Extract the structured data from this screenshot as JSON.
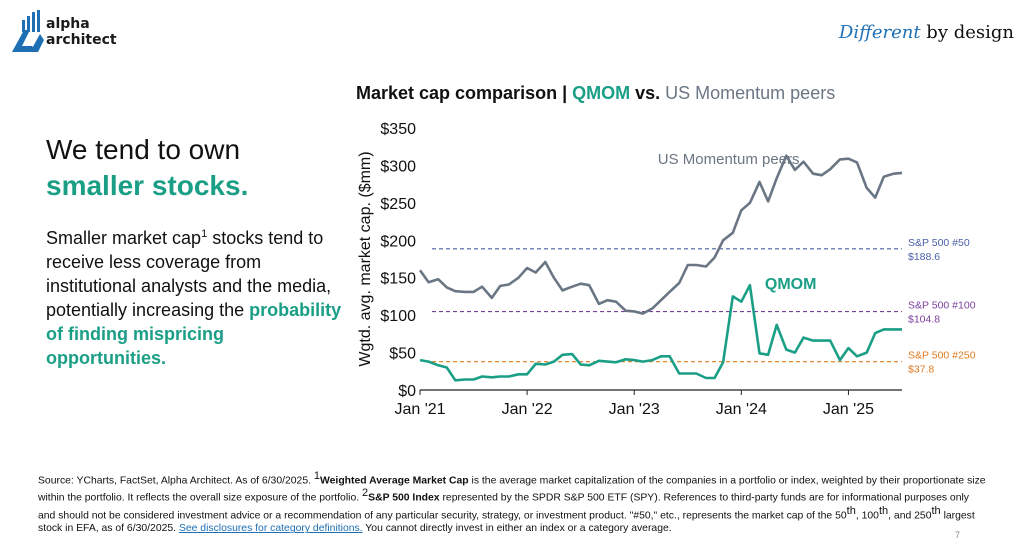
{
  "brand": {
    "name_line1": "alpha",
    "name_line2": "architect",
    "logo_color": "#1f6fb5"
  },
  "tagline": {
    "emphasis": "Different",
    "rest": " by design"
  },
  "headline": {
    "line1": "We tend to own",
    "line2": "smaller stocks."
  },
  "body": {
    "part1": "Smaller market cap",
    "sup": "1",
    "part2": " stocks tend to receive less coverage from institutional analysts and the media, potentially increasing the ",
    "accent": "probability of finding mispricing opportunities."
  },
  "chart_title": {
    "prefix": "Market cap comparison | ",
    "qmom": "QMOM",
    "vs": " vs. ",
    "peers": "US Momentum peers"
  },
  "chart_data": {
    "type": "line",
    "ylabel": "Wgtd. avg. market cap. ($mm)",
    "xlabel": "",
    "ylim": [
      0,
      350
    ],
    "xlim": [
      2021.0,
      2025.5
    ],
    "y_ticks": [
      {
        "value": 0,
        "label": "$0"
      },
      {
        "value": 50,
        "label": "$50"
      },
      {
        "value": 100,
        "label": "$100"
      },
      {
        "value": 150,
        "label": "$150"
      },
      {
        "value": 200,
        "label": "$200"
      },
      {
        "value": 250,
        "label": "$250"
      },
      {
        "value": 300,
        "label": "$300"
      },
      {
        "value": 350,
        "label": "$350"
      }
    ],
    "x_ticks": [
      {
        "value": 2021,
        "label": "Jan '21"
      },
      {
        "value": 2022,
        "label": "Jan '22"
      },
      {
        "value": 2023,
        "label": "Jan '23"
      },
      {
        "value": 2024,
        "label": "Jan '24"
      },
      {
        "value": 2025,
        "label": "Jan '25"
      }
    ],
    "series": [
      {
        "name": "US Momentum peers",
        "color": "#6b7685",
        "x": [
          2021.0,
          2021.08,
          2021.17,
          2021.25,
          2021.33,
          2021.42,
          2021.5,
          2021.58,
          2021.67,
          2021.75,
          2021.83,
          2021.92,
          2022.0,
          2022.08,
          2022.17,
          2022.25,
          2022.33,
          2022.42,
          2022.5,
          2022.58,
          2022.67,
          2022.75,
          2022.83,
          2022.92,
          2023.0,
          2023.08,
          2023.17,
          2023.25,
          2023.33,
          2023.42,
          2023.5,
          2023.58,
          2023.67,
          2023.75,
          2023.83,
          2023.92,
          2024.0,
          2024.08,
          2024.17,
          2024.25,
          2024.33,
          2024.42,
          2024.5,
          2024.58,
          2024.67,
          2024.75,
          2024.83,
          2024.92,
          2025.0,
          2025.08,
          2025.17,
          2025.25,
          2025.33,
          2025.42,
          2025.5
        ],
        "values": [
          160,
          144,
          148,
          137,
          132,
          131,
          131,
          138,
          123,
          139,
          141,
          150,
          163,
          157,
          171,
          150,
          133,
          138,
          142,
          140,
          115,
          120,
          118,
          106,
          105,
          102,
          109,
          120,
          131,
          143,
          167,
          167,
          165,
          177,
          200,
          210,
          240,
          250,
          278,
          252,
          283,
          313,
          294,
          305,
          289,
          287,
          295,
          308,
          309,
          304,
          270,
          257,
          285,
          289,
          290
        ]
      },
      {
        "name": "QMOM",
        "color": "#1a9f86",
        "x": [
          2021.0,
          2021.08,
          2021.17,
          2021.25,
          2021.33,
          2021.42,
          2021.5,
          2021.58,
          2021.67,
          2021.75,
          2021.83,
          2021.92,
          2022.0,
          2022.08,
          2022.17,
          2022.25,
          2022.33,
          2022.42,
          2022.5,
          2022.58,
          2022.67,
          2022.75,
          2022.83,
          2022.92,
          2023.0,
          2023.08,
          2023.17,
          2023.25,
          2023.33,
          2023.42,
          2023.5,
          2023.58,
          2023.67,
          2023.75,
          2023.83,
          2023.92,
          2024.0,
          2024.08,
          2024.17,
          2024.25,
          2024.33,
          2024.42,
          2024.5,
          2024.58,
          2024.67,
          2024.75,
          2024.83,
          2024.92,
          2025.0,
          2025.08,
          2025.17,
          2025.25,
          2025.33,
          2025.42,
          2025.5
        ],
        "values": [
          40,
          38,
          33,
          30,
          13,
          14,
          14,
          18,
          17,
          18,
          18,
          21,
          21,
          35,
          34,
          38,
          47,
          48,
          34,
          33,
          39,
          38,
          37,
          41,
          40,
          38,
          40,
          45,
          45,
          22,
          22,
          22,
          16,
          16,
          37,
          125,
          118,
          140,
          49,
          47,
          87,
          54,
          50,
          70,
          66,
          66,
          66,
          40,
          56,
          45,
          50,
          76,
          81,
          81,
          81
        ]
      }
    ],
    "series_labels": [
      {
        "text": "US Momentum peers",
        "x": 2023.22,
        "y": 302
      },
      {
        "text": "QMOM",
        "x": 2024.22,
        "y": 135
      }
    ],
    "reference_lines": [
      {
        "name": "S&P 500 #50",
        "value": 188.6,
        "value_label": "$188.6",
        "color": "#4a5fa8"
      },
      {
        "name": "S&P 500 #100",
        "value": 104.8,
        "value_label": "$104.8",
        "color": "#7b3f9e"
      },
      {
        "name": "S&P 500 #250",
        "value": 37.8,
        "value_label": "$37.8",
        "color": "#e07b22"
      }
    ],
    "grid": false
  },
  "footnote": {
    "p1": "Source: YCharts, FactSet, Alpha Architect. As of 6/30/2025. ",
    "sup1": "1",
    "b1": "Weighted Average Market Cap",
    "p2": " is the average market capitalization of the companies in a portfolio or index, weighted by their proportionate size within the portfolio. It reflects the overall size exposure of the portfolio. ",
    "sup2": "2",
    "b2": "S&P 500 Index",
    "p3": " represented by the SPDR S&P 500 ETF (SPY). References to third-party funds are for informational purposes only and should not be considered investment advice or a recommendation of any particular security, strategy, or investment product. \"#50,\" etc., represents the market cap of the 50",
    "th1": "th",
    "p4": ", 100",
    "th2": "th",
    "p5": ", and 250",
    "th3": "th",
    "p6": " largest stock in EFA, as of 6/30/2025. ",
    "link": "See disclosures for category definitions.",
    "p7": " You cannot directly invest in either an index or a category average."
  },
  "page_mark": "7"
}
